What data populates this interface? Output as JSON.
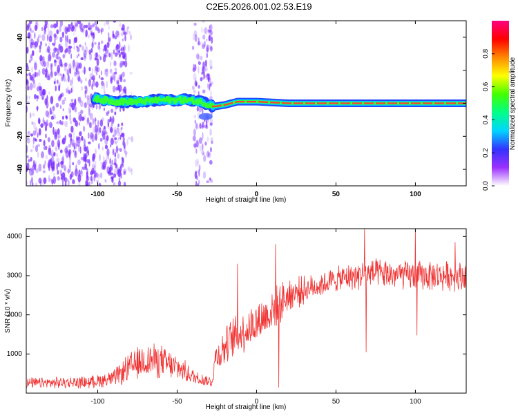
{
  "title": "C2E5.2026.001.02.53.E19",
  "colors": {
    "snr_line": "#f03232",
    "track_outer": "#2244ff",
    "track_mid": "#00c8ff",
    "track_inner": "#33ff33",
    "track_core": "#ff3b3b",
    "noise": "#7a2cff"
  },
  "chart_data": [
    {
      "type": "heatmap",
      "name": "spectrogram",
      "xlabel": "Height of straight line (km)",
      "ylabel": "Frequency (Hz)",
      "xlim": [
        -145,
        132
      ],
      "ylim": [
        -50,
        50
      ],
      "xticks": [
        -100,
        -50,
        0,
        50,
        100
      ],
      "yticks": [
        -40,
        -20,
        0,
        20,
        40
      ],
      "colorbar": {
        "label": "Normalized spectral amplitude",
        "range": [
          0,
          1
        ],
        "ticks": [
          "0.0",
          "0.2",
          "0.4",
          "0.6",
          "0.8"
        ],
        "gradient": [
          "#ffffff",
          "#9b30ff",
          "#3333ff",
          "#00d5ff",
          "#00ff88",
          "#44ff00",
          "#ffff00",
          "#ff8800",
          "#ff0000",
          "#ff0080"
        ]
      },
      "track": [
        {
          "x": -102,
          "f": 3
        },
        {
          "x": -90,
          "f": 1
        },
        {
          "x": -75,
          "f": 1
        },
        {
          "x": -60,
          "f": 2
        },
        {
          "x": -45,
          "f": 2
        },
        {
          "x": -35,
          "f": 1
        },
        {
          "x": -27,
          "f": -2
        },
        {
          "x": -20,
          "f": -1
        },
        {
          "x": -12,
          "f": 1
        },
        {
          "x": 0,
          "f": 1
        },
        {
          "x": 20,
          "f": 0
        },
        {
          "x": 60,
          "f": 0
        },
        {
          "x": 100,
          "f": 0
        },
        {
          "x": 132,
          "f": 0
        }
      ],
      "noise_regions": [
        {
          "x_from": -145,
          "x_to": -82,
          "density": 1.0
        },
        {
          "x_from": -82,
          "x_to": -78,
          "density": 0.25
        },
        {
          "x_from": -40,
          "x_to": -28,
          "density": 0.9
        }
      ]
    },
    {
      "type": "line",
      "name": "snr",
      "xlabel": "Height of straight line (km)",
      "ylabel": "SNR (10 * v/v)",
      "xlim": [
        -145,
        132
      ],
      "ylim": [
        0,
        4200
      ],
      "xticks": [
        -100,
        -50,
        0,
        50,
        100
      ],
      "yticks": [
        1000,
        2000,
        3000,
        4000
      ],
      "envelope": [
        {
          "x": -145,
          "mean": 250,
          "spread": 150
        },
        {
          "x": -105,
          "mean": 280,
          "spread": 170
        },
        {
          "x": -90,
          "mean": 380,
          "spread": 230
        },
        {
          "x": -80,
          "mean": 650,
          "spread": 420
        },
        {
          "x": -70,
          "mean": 850,
          "spread": 500
        },
        {
          "x": -60,
          "mean": 800,
          "spread": 480
        },
        {
          "x": -48,
          "mean": 620,
          "spread": 350
        },
        {
          "x": -40,
          "mean": 420,
          "spread": 220
        },
        {
          "x": -28,
          "mean": 280,
          "spread": 150
        },
        {
          "x": -26,
          "mean": 900,
          "spread": 420
        },
        {
          "x": -15,
          "mean": 1400,
          "spread": 600
        },
        {
          "x": 0,
          "mean": 1800,
          "spread": 600
        },
        {
          "x": 10,
          "mean": 2100,
          "spread": 600
        },
        {
          "x": 20,
          "mean": 2500,
          "spread": 500
        },
        {
          "x": 35,
          "mean": 2700,
          "spread": 350
        },
        {
          "x": 50,
          "mean": 2900,
          "spread": 350
        },
        {
          "x": 70,
          "mean": 3050,
          "spread": 420
        },
        {
          "x": 100,
          "mean": 3000,
          "spread": 420
        },
        {
          "x": 132,
          "mean": 3000,
          "spread": 420
        }
      ],
      "spikes": [
        {
          "x": 12,
          "y": 3800
        },
        {
          "x": -12,
          "y": 3300
        },
        {
          "x": 14,
          "y": 150
        },
        {
          "x": 68,
          "y": 4200
        },
        {
          "x": 69,
          "y": 1050
        },
        {
          "x": 100,
          "y": 4150
        },
        {
          "x": 101,
          "y": 1480
        },
        {
          "x": 125,
          "y": 3850
        }
      ]
    }
  ]
}
